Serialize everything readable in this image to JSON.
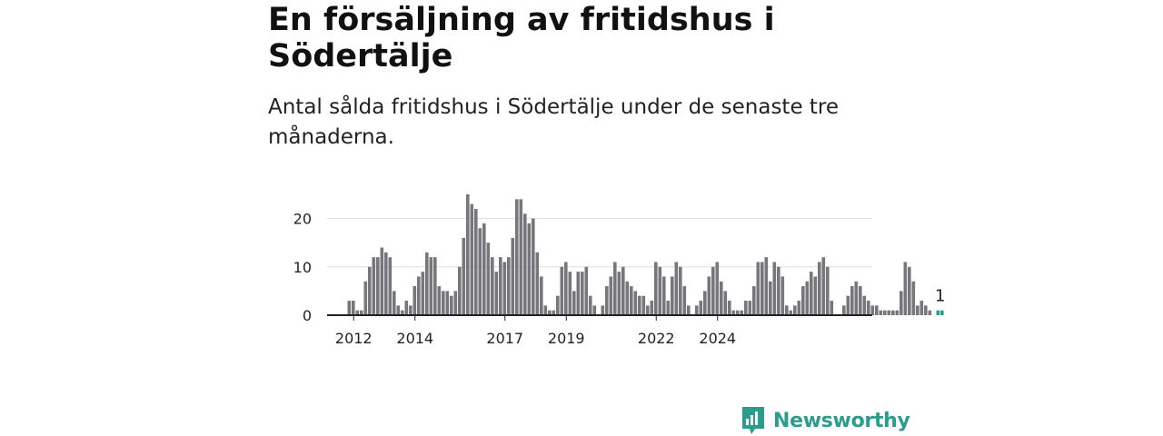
{
  "title": "En försäljning av fritidshus i Södertälje",
  "subtitle": "Antal sålda fritidshus i Södertälje under de senaste tre månaderna.",
  "brand": {
    "name": "Newsworthy",
    "color": "#2a9d8f"
  },
  "colors": {
    "bar": "#77767b",
    "highlight": "#2a9d8f",
    "grid": "#dddddd",
    "axis": "#222222"
  },
  "chart_data": {
    "type": "bar",
    "x_ticks": [
      "2012",
      "2014",
      "2017",
      "2019",
      "2022",
      "2024"
    ],
    "x_tick_index": [
      6,
      21,
      43,
      58,
      80,
      95
    ],
    "y_ticks": [
      0,
      10,
      20
    ],
    "ylim": [
      0,
      26
    ],
    "highlight_label": "1",
    "values": [
      0,
      0,
      0,
      0,
      0,
      3,
      3,
      1,
      1,
      7,
      10,
      12,
      12,
      14,
      13,
      12,
      5,
      2,
      1,
      3,
      2,
      6,
      8,
      9,
      13,
      12,
      12,
      6,
      5,
      5,
      4,
      5,
      10,
      16,
      25,
      23,
      22,
      18,
      19,
      15,
      12,
      9,
      12,
      11,
      12,
      16,
      24,
      24,
      21,
      19,
      20,
      13,
      8,
      2,
      1,
      1,
      4,
      10,
      11,
      9,
      5,
      9,
      9,
      10,
      4,
      2,
      0,
      2,
      6,
      8,
      11,
      9,
      10,
      7,
      6,
      5,
      4,
      4,
      2,
      3,
      11,
      10,
      8,
      3,
      8,
      11,
      10,
      6,
      2,
      0,
      2,
      3,
      5,
      8,
      10,
      11,
      7,
      5,
      3,
      1,
      1,
      1,
      3,
      3,
      6,
      11,
      11,
      12,
      7,
      11,
      10,
      8,
      2,
      1,
      2,
      3,
      6,
      7,
      9,
      8,
      11,
      12,
      10,
      3,
      0,
      0,
      2,
      4,
      6,
      7,
      6,
      4,
      3,
      2,
      2,
      1,
      1,
      1,
      1,
      1,
      5,
      11,
      10,
      7,
      2,
      3,
      2,
      1,
      0,
      1,
      1
    ],
    "highlight_count": 2
  }
}
